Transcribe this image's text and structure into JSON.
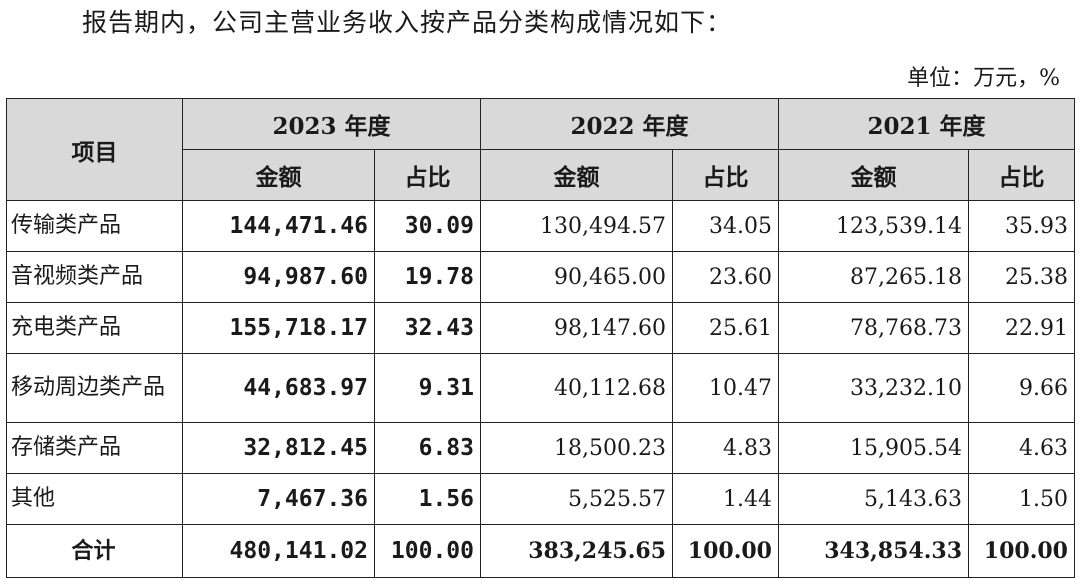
{
  "intro": "报告期内，公司主营业务收入按产品分类构成情况如下：",
  "unit": "单位：万元，%",
  "header": {
    "item": "项目",
    "years": [
      "2023 年度",
      "2022 年度",
      "2021 年度"
    ],
    "amount": "金额",
    "ratio": "占比"
  },
  "rows": [
    {
      "name": "传输类产品",
      "y2023_amount": "144,471.46",
      "y2023_ratio": "30.09",
      "y2022_amount": "130,494.57",
      "y2022_ratio": "34.05",
      "y2021_amount": "123,539.14",
      "y2021_ratio": "35.93"
    },
    {
      "name": "音视频类产品",
      "y2023_amount": "94,987.60",
      "y2023_ratio": "19.78",
      "y2022_amount": "90,465.00",
      "y2022_ratio": "23.60",
      "y2021_amount": "87,265.18",
      "y2021_ratio": "25.38"
    },
    {
      "name": "充电类产品",
      "y2023_amount": "155,718.17",
      "y2023_ratio": "32.43",
      "y2022_amount": "98,147.60",
      "y2022_ratio": "25.61",
      "y2021_amount": "78,768.73",
      "y2021_ratio": "22.91"
    },
    {
      "name": "移动周边类产品",
      "y2023_amount": "44,683.97",
      "y2023_ratio": "9.31",
      "y2022_amount": "40,112.68",
      "y2022_ratio": "10.47",
      "y2021_amount": "33,232.10",
      "y2021_ratio": "9.66"
    },
    {
      "name": "存储类产品",
      "y2023_amount": "32,812.45",
      "y2023_ratio": "6.83",
      "y2022_amount": "18,500.23",
      "y2022_ratio": "4.83",
      "y2021_amount": "15,905.54",
      "y2021_ratio": "4.63"
    },
    {
      "name": "其他",
      "y2023_amount": "7,467.36",
      "y2023_ratio": "1.56",
      "y2022_amount": "5,525.57",
      "y2022_ratio": "1.44",
      "y2021_amount": "5,143.63",
      "y2021_ratio": "1.50"
    }
  ],
  "total": {
    "name": "合计",
    "y2023_amount": "480,141.02",
    "y2023_ratio": "100.00",
    "y2022_amount": "383,245.65",
    "y2022_ratio": "100.00",
    "y2021_amount": "343,854.33",
    "y2021_ratio": "100.00"
  }
}
